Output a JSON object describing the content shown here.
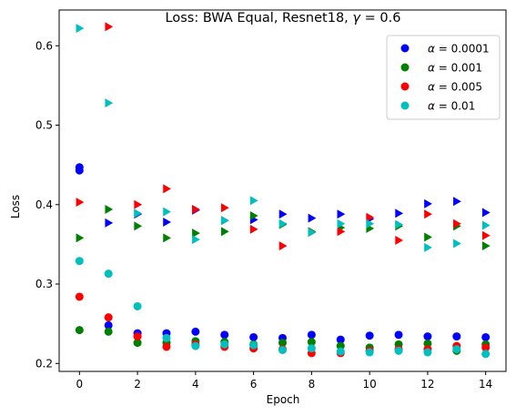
{
  "chart_data": {
    "type": "scatter",
    "title": "Loss: BWA Equal, Resnet18, γ = 0.6",
    "title_parts": {
      "main": "Loss: BWA Equal, Resnet18, ",
      "symbol": "γ",
      "rest": " = 0.6"
    },
    "xlabel": "Epoch",
    "ylabel": "Loss",
    "xlim": [
      -0.7,
      14.7
    ],
    "ylim": [
      0.19,
      0.645
    ],
    "xticks": [
      0,
      2,
      4,
      6,
      8,
      10,
      12,
      14
    ],
    "yticks": [
      0.2,
      0.3,
      0.4,
      0.5,
      0.6
    ],
    "ytick_labels": [
      "0.2",
      "0.3",
      "0.4",
      "0.5",
      "0.6"
    ],
    "legend_position": "top-right",
    "grid": false,
    "series": [
      {
        "name": "α = 0.0001",
        "legend": {
          "symbol": "α",
          "rest": " = 0.0001"
        },
        "color": "#0000ff",
        "circles": [
          [
            0,
            0.447
          ],
          [
            0,
            0.443
          ],
          [
            1,
            0.248
          ],
          [
            2,
            0.238
          ],
          [
            3,
            0.238
          ],
          [
            4,
            0.24
          ],
          [
            5,
            0.236
          ],
          [
            6,
            0.233
          ],
          [
            7,
            0.232
          ],
          [
            8,
            0.236
          ],
          [
            9,
            0.23
          ],
          [
            10,
            0.235
          ],
          [
            11,
            0.236
          ],
          [
            12,
            0.234
          ],
          [
            13,
            0.234
          ],
          [
            14,
            0.233
          ]
        ],
        "triangles": [
          [
            1,
            0.377
          ],
          [
            2,
            0.388
          ],
          [
            3,
            0.378
          ],
          [
            4,
            0.393
          ],
          [
            5,
            0.38
          ],
          [
            6,
            0.381
          ],
          [
            7,
            0.388
          ],
          [
            8,
            0.383
          ],
          [
            9,
            0.388
          ],
          [
            10,
            0.382
          ],
          [
            11,
            0.389
          ],
          [
            12,
            0.401
          ],
          [
            13,
            0.404
          ],
          [
            14,
            0.39
          ]
        ]
      },
      {
        "name": "α = 0.001",
        "legend": {
          "symbol": "α",
          "rest": " = 0.001"
        },
        "color": "#008000",
        "circles": [
          [
            0,
            0.242
          ],
          [
            1,
            0.24
          ],
          [
            2,
            0.226
          ],
          [
            3,
            0.226
          ],
          [
            4,
            0.228
          ],
          [
            5,
            0.227
          ],
          [
            6,
            0.224
          ],
          [
            7,
            0.226
          ],
          [
            8,
            0.227
          ],
          [
            9,
            0.222
          ],
          [
            10,
            0.22
          ],
          [
            11,
            0.224
          ],
          [
            12,
            0.225
          ],
          [
            13,
            0.216
          ],
          [
            14,
            0.224
          ]
        ],
        "triangles": [
          [
            0,
            0.358
          ],
          [
            1,
            0.394
          ],
          [
            2,
            0.373
          ],
          [
            3,
            0.358
          ],
          [
            4,
            0.364
          ],
          [
            5,
            0.366
          ],
          [
            6,
            0.386
          ],
          [
            7,
            0.375
          ],
          [
            8,
            0.366
          ],
          [
            9,
            0.371
          ],
          [
            10,
            0.37
          ],
          [
            11,
            0.373
          ],
          [
            12,
            0.359
          ],
          [
            13,
            0.373
          ],
          [
            14,
            0.348
          ]
        ]
      },
      {
        "name": "α = 0.005",
        "legend": {
          "symbol": "α",
          "rest": " = 0.005"
        },
        "color": "#ff0000",
        "circles": [
          [
            0,
            0.284
          ],
          [
            1,
            0.258
          ],
          [
            2,
            0.234
          ],
          [
            3,
            0.221
          ],
          [
            4,
            0.224
          ],
          [
            5,
            0.221
          ],
          [
            6,
            0.219
          ],
          [
            7,
            0.218
          ],
          [
            8,
            0.213
          ],
          [
            9,
            0.213
          ],
          [
            10,
            0.216
          ],
          [
            11,
            0.218
          ],
          [
            12,
            0.218
          ],
          [
            13,
            0.222
          ],
          [
            14,
            0.22
          ]
        ],
        "triangles": [
          [
            0,
            0.403
          ],
          [
            1,
            0.624
          ],
          [
            2,
            0.4
          ],
          [
            3,
            0.42
          ],
          [
            4,
            0.394
          ],
          [
            5,
            0.396
          ],
          [
            6,
            0.369
          ],
          [
            7,
            0.348
          ],
          [
            8,
            0.365
          ],
          [
            9,
            0.366
          ],
          [
            10,
            0.384
          ],
          [
            11,
            0.355
          ],
          [
            12,
            0.388
          ],
          [
            13,
            0.376
          ],
          [
            14,
            0.361
          ]
        ]
      },
      {
        "name": "α = 0.01",
        "legend": {
          "symbol": "α",
          "rest": " = 0.01"
        },
        "color": "#00bfbf",
        "circles": [
          [
            0,
            0.329
          ],
          [
            1,
            0.313
          ],
          [
            2,
            0.272
          ],
          [
            3,
            0.232
          ],
          [
            4,
            0.222
          ],
          [
            5,
            0.224
          ],
          [
            6,
            0.223
          ],
          [
            7,
            0.217
          ],
          [
            8,
            0.219
          ],
          [
            9,
            0.215
          ],
          [
            10,
            0.214
          ],
          [
            11,
            0.216
          ],
          [
            12,
            0.214
          ],
          [
            13,
            0.218
          ],
          [
            14,
            0.212
          ]
        ],
        "triangles": [
          [
            0,
            0.622
          ],
          [
            1,
            0.528
          ],
          [
            2,
            0.389
          ],
          [
            3,
            0.391
          ],
          [
            4,
            0.356
          ],
          [
            5,
            0.38
          ],
          [
            6,
            0.405
          ],
          [
            7,
            0.376
          ],
          [
            8,
            0.365
          ],
          [
            9,
            0.376
          ],
          [
            10,
            0.376
          ],
          [
            11,
            0.375
          ],
          [
            12,
            0.346
          ],
          [
            13,
            0.351
          ],
          [
            14,
            0.374
          ]
        ]
      }
    ]
  }
}
